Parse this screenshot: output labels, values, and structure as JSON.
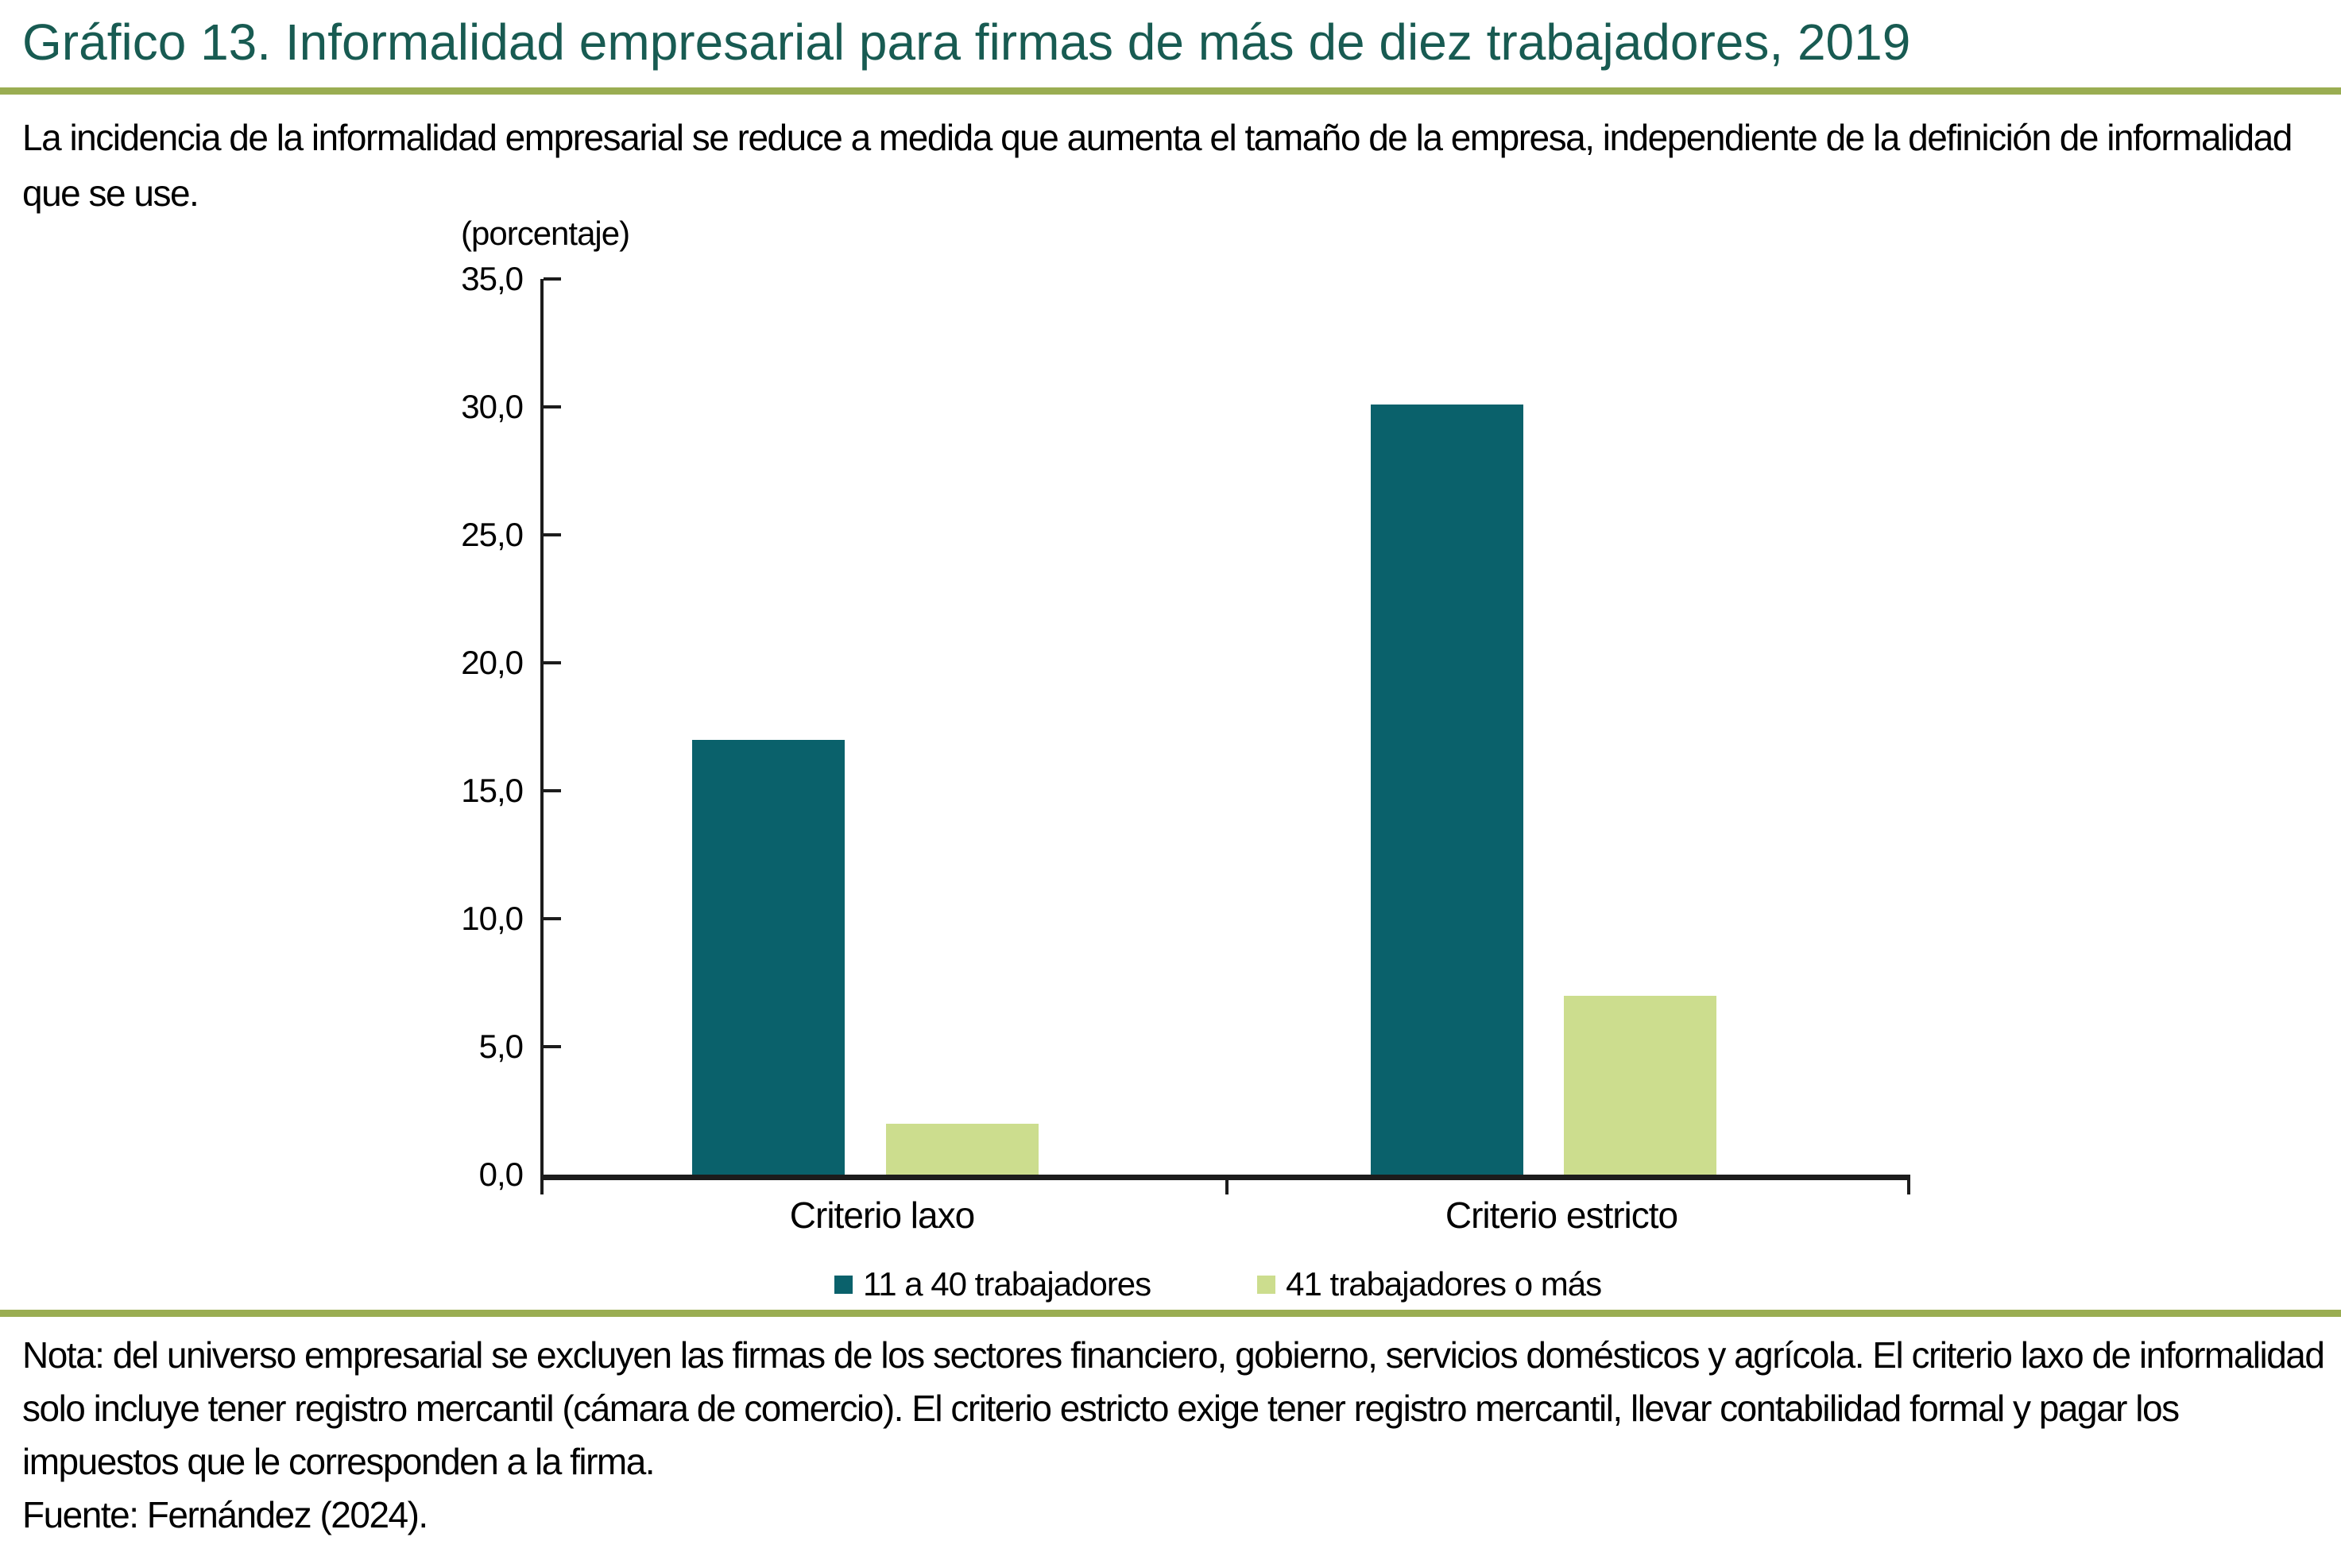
{
  "title": "Gráfico 13. Informalidad empresarial para firmas de más de diez trabajadores, 2019",
  "subtitle": "La incidencia de la informalidad empresarial se reduce a medida que aumenta el tamaño de la empresa, independiente de la definición de informalidad que se use.",
  "chart_data": {
    "type": "bar",
    "title": "Gráfico 13. Informalidad empresarial para firmas de más de diez trabajadores, 2019",
    "unit_label": "(porcentaje)",
    "categories": [
      "Criterio laxo",
      "Criterio estricto"
    ],
    "series": [
      {
        "name": "11 a 40 trabajadores",
        "color": "#0a616b",
        "values": [
          17.0,
          30.1
        ]
      },
      {
        "name": "41 trabajadores o más",
        "color": "#ccdd8e",
        "values": [
          2.0,
          7.0
        ]
      }
    ],
    "ylim": [
      0,
      35
    ],
    "ytick_step": 5,
    "ytick_labels": [
      "0,0",
      "5,0",
      "10,0",
      "15,0",
      "20,0",
      "25,0",
      "30,0",
      "35,0"
    ],
    "grid": false,
    "legend_position": "bottom"
  },
  "note": "Nota: del universo empresarial se excluyen las firmas de los sectores financiero, gobierno, servicios domésticos y agrícola. El criterio laxo de informalidad solo incluye tener registro mercantil (cámara de comercio). El criterio estricto exige tener registro mercantil, llevar contabilidad formal y pagar los impuestos que le corresponden a la firma.",
  "source": "Fuente: Fernández (2024).",
  "colors": {
    "title": "#185b52",
    "rule": "#9aad52",
    "axis": "#1c1c1c",
    "series_1": "#0a616b",
    "series_2": "#ccdd8e"
  }
}
